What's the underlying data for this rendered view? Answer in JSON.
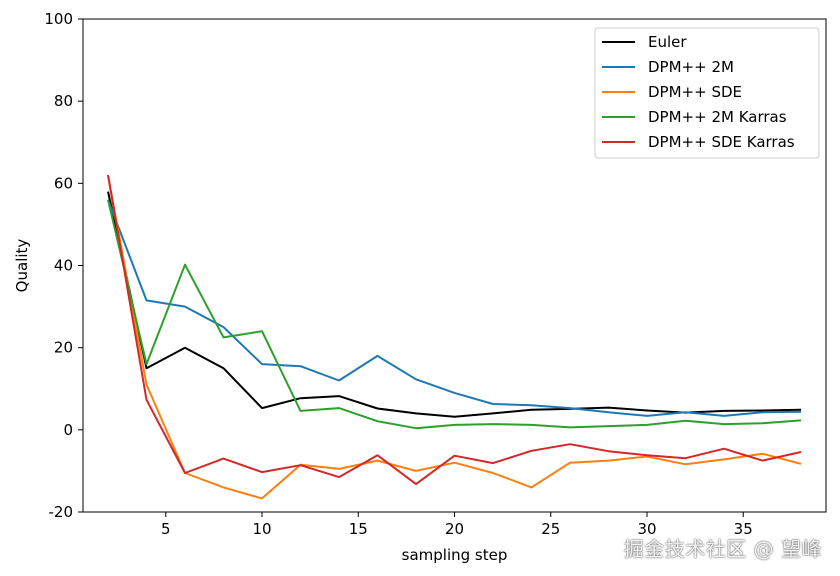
{
  "chart_data": {
    "type": "line",
    "title": "",
    "xlabel": "sampling step",
    "ylabel": "Quality",
    "xlim": [
      0.7,
      39.3
    ],
    "ylim": [
      -20,
      100
    ],
    "xticks": [
      5,
      10,
      15,
      20,
      25,
      30,
      35
    ],
    "yticks": [
      -20,
      0,
      20,
      40,
      60,
      80,
      100
    ],
    "grid": false,
    "legend_position": "top-right",
    "x": [
      2,
      4,
      6,
      8,
      10,
      12,
      14,
      16,
      18,
      20,
      22,
      24,
      26,
      28,
      30,
      32,
      34,
      36,
      38
    ],
    "series": [
      {
        "name": "Euler",
        "color": "#000000",
        "values": [
          58,
          15,
          20,
          15,
          5.3,
          7.7,
          8.2,
          5.2,
          4.0,
          3.2,
          4.0,
          4.9,
          5.1,
          5.4,
          4.7,
          4.2,
          4.6,
          4.7,
          4.9
        ]
      },
      {
        "name": "DPM++ 2M",
        "color": "#1f77b4",
        "values": [
          56,
          31.5,
          30,
          25,
          16,
          15.5,
          12,
          18,
          12.3,
          9,
          6.3,
          6,
          5.3,
          4.3,
          3.4,
          4.3,
          3.4,
          4.3,
          4.4
        ]
      },
      {
        "name": "DPM++ SDE",
        "color": "#ff7f0e",
        "values": [
          62,
          11,
          -10.5,
          -14,
          -16.7,
          -8.5,
          -9.5,
          -7.5,
          -10,
          -8,
          -10.5,
          -14,
          -8,
          -7.5,
          -6.5,
          -8.4,
          -7.2,
          -5.8,
          -8.3
        ]
      },
      {
        "name": "DPM++ 2M Karras",
        "color": "#2ca02c",
        "values": [
          56,
          16,
          40.2,
          22.5,
          24,
          4.6,
          5.3,
          2.1,
          0.4,
          1.2,
          1.4,
          1.2,
          0.6,
          0.9,
          1.2,
          2.2,
          1.4,
          1.6,
          2.3
        ]
      },
      {
        "name": "DPM++ SDE Karras",
        "color": "#d62728",
        "values": [
          62,
          7.3,
          -10.5,
          -7,
          -10.3,
          -8.6,
          -11.5,
          -6.2,
          -13.2,
          -6.3,
          -8.1,
          -5.1,
          -3.5,
          -5.2,
          -6.2,
          -6.9,
          -4.6,
          -7.5,
          -5.4
        ]
      }
    ]
  },
  "watermark": "掘金技术社区 @ 望峰"
}
